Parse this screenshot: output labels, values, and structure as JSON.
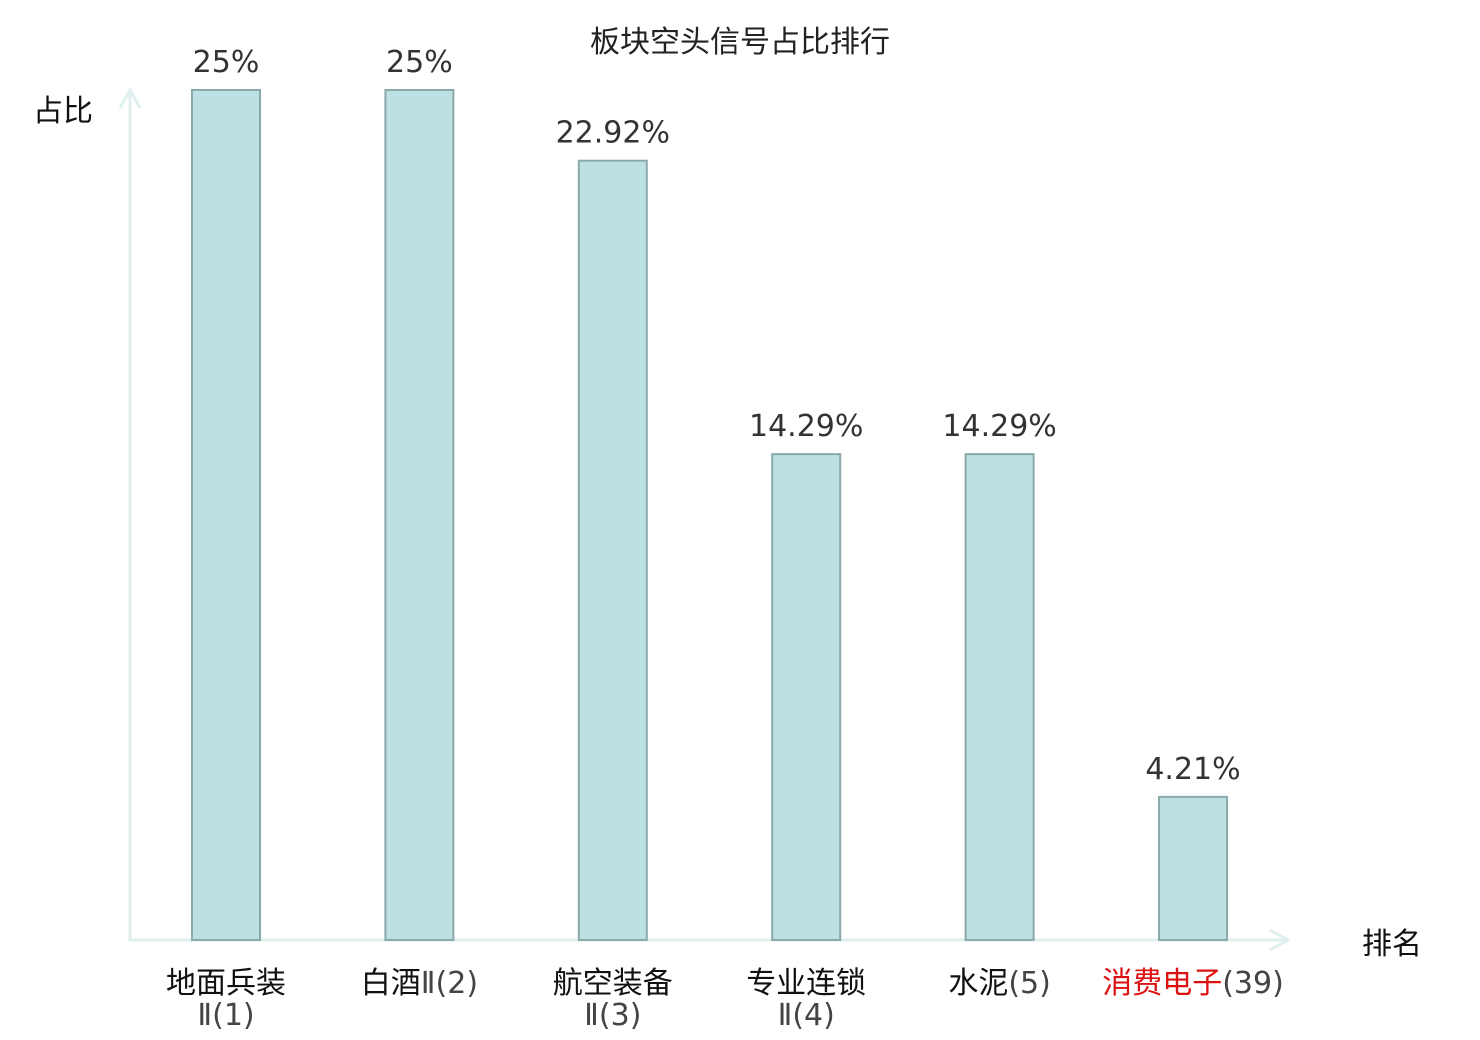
{
  "chart_data": {
    "type": "bar",
    "title": "板块空头信号占比排行",
    "ylabel": "占比",
    "xlabel": "排名",
    "ylim": [
      0,
      25
    ],
    "grid": false,
    "legend": "none",
    "categories": [
      {
        "name": "地面兵装",
        "suffix": "Ⅱ(1)",
        "two_line": true,
        "highlight": false
      },
      {
        "name": "白酒",
        "suffix": "Ⅱ(2)",
        "two_line": false,
        "highlight": false
      },
      {
        "name": "航空装备",
        "suffix": "Ⅱ(3)",
        "two_line": true,
        "highlight": false
      },
      {
        "name": "专业连锁",
        "suffix": "Ⅱ(4)",
        "two_line": true,
        "highlight": false
      },
      {
        "name": "水泥",
        "suffix": "(5)",
        "two_line": false,
        "highlight": false
      },
      {
        "name": "消费电子",
        "suffix": "(39)",
        "two_line": false,
        "highlight": true
      }
    ],
    "values": [
      25,
      25,
      22.92,
      14.29,
      14.29,
      4.21
    ],
    "value_labels": [
      "25%",
      "25%",
      "22.92%",
      "14.29%",
      "14.29%",
      "4.21%"
    ],
    "colors": {
      "bar_fill": "#bde0e3",
      "bar_stroke": "#8aa9ab",
      "axis": "#dff0ee",
      "highlight": "#dd1111"
    }
  }
}
